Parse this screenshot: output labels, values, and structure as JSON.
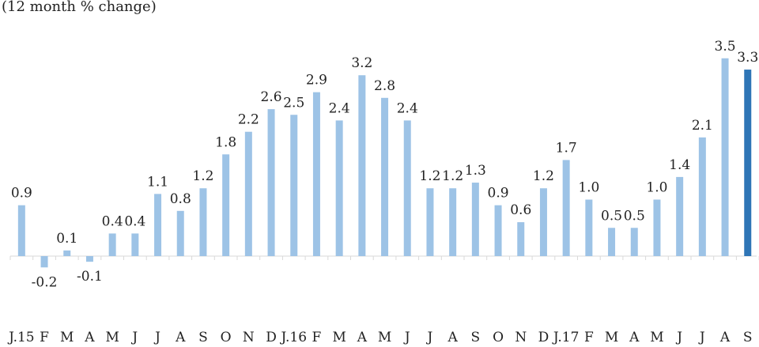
{
  "chart_data": {
    "type": "bar",
    "subtitle": "(12 month % change)",
    "categories": [
      "J.15",
      "F",
      "M",
      "A",
      "M",
      "J",
      "J",
      "A",
      "S",
      "O",
      "N",
      "D",
      "J.16",
      "F",
      "M",
      "A",
      "M",
      "J",
      "J",
      "A",
      "S",
      "O",
      "N",
      "D",
      "J.17",
      "F",
      "M",
      "A",
      "M",
      "J",
      "J",
      "A",
      "S"
    ],
    "values": [
      0.9,
      -0.2,
      0.1,
      -0.1,
      0.4,
      0.4,
      1.1,
      0.8,
      1.2,
      1.8,
      2.2,
      2.6,
      2.5,
      2.9,
      2.4,
      3.2,
      2.8,
      2.4,
      1.2,
      1.2,
      1.3,
      0.9,
      0.6,
      1.2,
      1.7,
      1.0,
      0.5,
      0.5,
      1.0,
      1.4,
      2.1,
      3.5,
      3.3
    ],
    "data_labels": [
      "0.9",
      "-0.2",
      "0.1",
      "-0.1",
      "0.4",
      "0.4",
      "1.1",
      "0.8",
      "1.2",
      "1.8",
      "2.2",
      "2.6",
      "2.5",
      "2.9",
      "2.4",
      "3.2",
      "2.8",
      "2.4",
      "1.2",
      "1.2",
      "1.3",
      "0.9",
      "0.6",
      "1.2",
      "1.7",
      "1.0",
      "0.5",
      "0.5",
      "1.0",
      "1.4",
      "2.1",
      "3.5",
      "3.3"
    ],
    "highlight_index": 32,
    "colors": {
      "bar": "#9dc3e6",
      "highlight": "#2e75b6",
      "axis": "#d9d9d9"
    },
    "grid": false,
    "legend": "none"
  }
}
